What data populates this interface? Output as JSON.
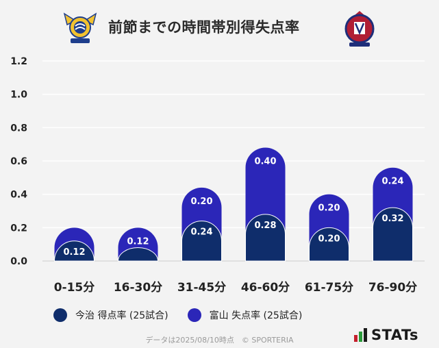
{
  "header": {
    "title": "前節までの時間帯別得失点率",
    "home_logo": "imabari-crest-icon",
    "away_logo": "toyama-crest-icon"
  },
  "colors": {
    "scored": "#0f2d6b",
    "conceded": "#2b26b8",
    "grid": "#ffffff",
    "axis": "#cccccc",
    "background": "#f3f3f3"
  },
  "chart_data": {
    "type": "bar",
    "stacked": true,
    "title": "前節までの時間帯別得失点率",
    "categories": [
      "0-15分",
      "16-30分",
      "31-45分",
      "46-60分",
      "61-75分",
      "76-90分"
    ],
    "series": [
      {
        "name": "今治 得点率 (25試合)",
        "values": [
          0.12,
          0.08,
          0.24,
          0.28,
          0.2,
          0.32
        ],
        "labels": [
          "0.12",
          "",
          "0.24",
          "0.28",
          "0.20",
          "0.32"
        ]
      },
      {
        "name": "富山 失点率 (25試合)",
        "values": [
          0.08,
          0.12,
          0.2,
          0.4,
          0.2,
          0.24
        ],
        "labels": [
          "",
          "0.12",
          "0.20",
          "0.40",
          "0.20",
          "0.24"
        ]
      }
    ],
    "ylim": [
      0,
      1.2
    ],
    "yticks": [
      "0.0",
      "0.2",
      "0.4",
      "0.6",
      "0.8",
      "1.0",
      "1.2"
    ],
    "xlabel": "",
    "ylabel": ""
  },
  "legend": {
    "scored_label": "今治 得点率 (25試合)",
    "conceded_label": "富山 失点率 (25試合)"
  },
  "footer": {
    "note": "データは2025/08/10時点　© SPORTERIA",
    "brand": "STATs"
  }
}
